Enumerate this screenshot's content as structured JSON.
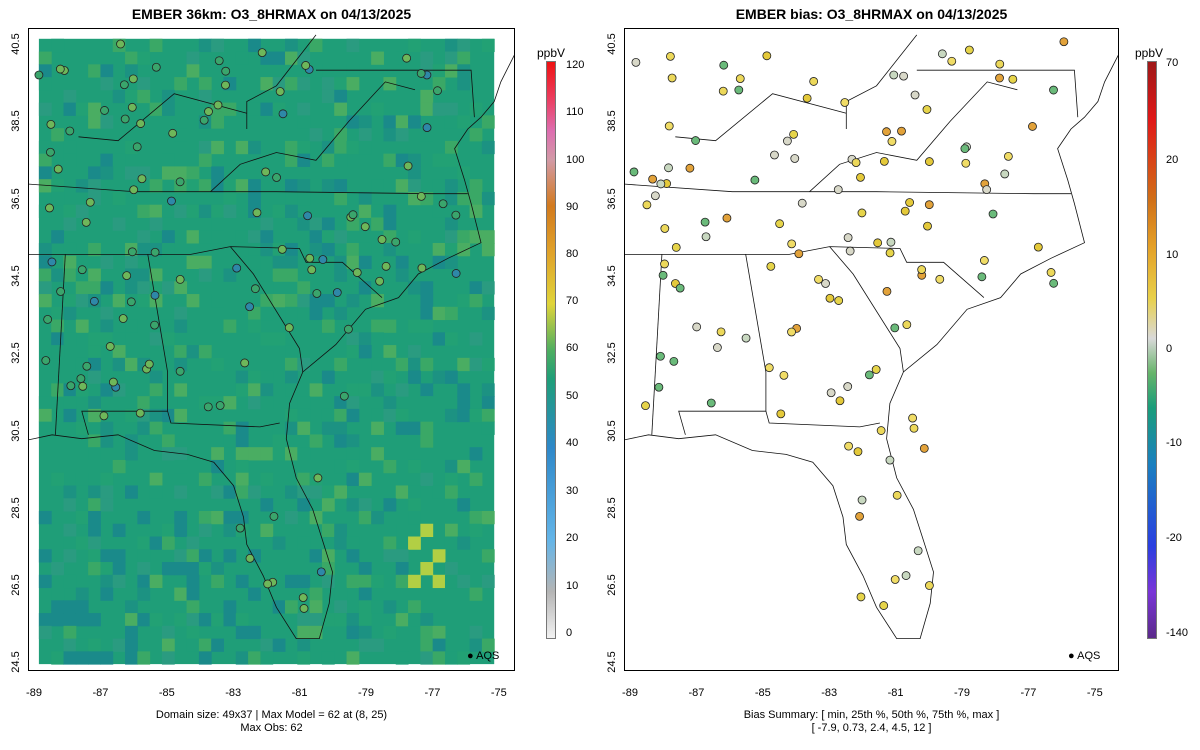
{
  "left": {
    "title": "EMBER 36km: O3_8HRMAX on 04/13/2025",
    "caption_line1": "Domain size: 49x37 | Max Model = 62 at (8, 25)",
    "caption_line2": "Max Obs: 62",
    "colorbar_unit": "ppbV",
    "colorbar_ticks": [
      "0",
      "10",
      "20",
      "30",
      "40",
      "50",
      "60",
      "70",
      "80",
      "90",
      "100",
      "110",
      "120"
    ],
    "legend_label": "AQS",
    "colors": {
      "model_fill": "#1f9e78",
      "model_dark": "#1c8a86",
      "model_light": "#4fae60",
      "hot": "#bcd23a"
    }
  },
  "right": {
    "title": "EMBER bias: O3_8HRMAX on 04/13/2025",
    "caption_line1": "Bias Summary: [ min, 25th %, 50th %, 75th %, max ]",
    "caption_line2": "[ -7.9,   0.73,   2.4,   4.5,   12 ]",
    "colorbar_unit": "ppbV",
    "colorbar_ticks": [
      "70",
      "20",
      "10",
      "0",
      "-10",
      "-20",
      "-140"
    ],
    "legend_label": "AQS"
  },
  "axes": {
    "y_ticks": [
      "40.5",
      "38.5",
      "36.5",
      "34.5",
      "32.5",
      "30.5",
      "28.5",
      "26.5",
      "24.5"
    ],
    "x_ticks": [
      "-89",
      "-87",
      "-85",
      "-83",
      "-81",
      "-79",
      "-77",
      "-75"
    ],
    "lon_range": [
      -89.2,
      -74.5
    ],
    "lat_range": [
      24.4,
      40.75
    ]
  }
}
